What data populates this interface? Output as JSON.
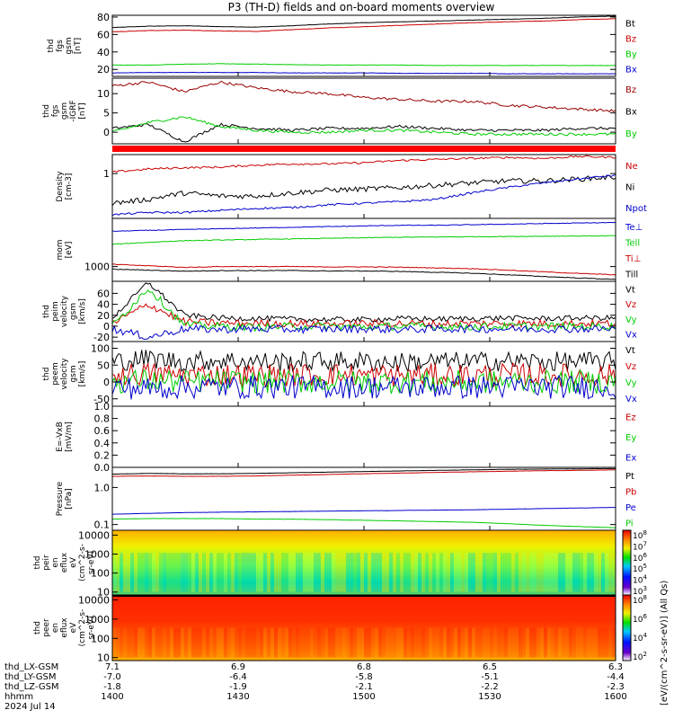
{
  "title": "P3 (TH-D) fields and on-board moments overview",
  "footer": {
    "row_labels": [
      "thd_LX-GSM",
      "thd_LY-GSM",
      "thd_LZ-GSM",
      "hhmm",
      "2024 Jul 14"
    ],
    "lx": [
      "7.1",
      "6.9",
      "6.8",
      "6.5",
      "6.3"
    ],
    "ly": [
      "-7.0",
      "-6.4",
      "-5.8",
      "-5.1",
      "-4.4"
    ],
    "lz": [
      "-1.8",
      "-1.9",
      "-2.1",
      "-2.2",
      "-2.3"
    ],
    "hhmm": [
      "1400",
      "1430",
      "1500",
      "1530",
      "1600"
    ],
    "date": "2024 Jul 14"
  },
  "colorbar_label": "[eV/(cm^2-s-sr-eV)] (All Qs)",
  "colors": {
    "black": "#000000",
    "red": "#cc0000",
    "green": "#00cc00",
    "blue": "#0000cc",
    "darkred": "#990000"
  },
  "chart_data": [
    {
      "id": "fgs_gsm",
      "type": "line",
      "ylabel": [
        "thd",
        "fgs",
        "gsm",
        "[nT]"
      ],
      "yticks": [
        "80",
        "60",
        "40",
        "20"
      ],
      "ylim": [
        12,
        82
      ],
      "series": [
        {
          "name": "Bt",
          "color": "#000000",
          "values": [
            68,
            69.5,
            70,
            69,
            68.5,
            70,
            72,
            73.5,
            74.5,
            75.5,
            76.5,
            77.5,
            78.5,
            80,
            81
          ]
        },
        {
          "name": "Bz",
          "color": "#cc0000",
          "values": [
            63,
            64.5,
            65,
            64,
            63.5,
            65.5,
            67.5,
            69,
            70.5,
            72,
            73.5,
            74.5,
            75.5,
            77,
            78
          ]
        },
        {
          "name": "By",
          "color": "#00cc00",
          "values": [
            25,
            25,
            26,
            26.5,
            26,
            25.5,
            25,
            25,
            25,
            24.5,
            24.5,
            24.5,
            24.5,
            24.5,
            24.5
          ]
        },
        {
          "name": "Bx",
          "color": "#0000cc",
          "values": [
            16,
            16.5,
            16.5,
            16.5,
            16.5,
            16,
            16,
            16,
            15.5,
            15.5,
            15.5,
            15,
            15,
            15,
            15
          ]
        }
      ]
    },
    {
      "id": "fgs_gsm_dip",
      "type": "line",
      "ylabel": [
        "thd",
        "fgs",
        "gsm",
        "-IGRF",
        "[nT]"
      ],
      "yticks": [
        "10",
        "5",
        "0"
      ],
      "ylim": [
        -3,
        14
      ],
      "series": [
        {
          "name": "Bz",
          "color": "#990000",
          "values": [
            12,
            13,
            10.5,
            13,
            11.5,
            10.5,
            10,
            9,
            8.5,
            8,
            8,
            7,
            6.5,
            6,
            5.5
          ]
        },
        {
          "name": "Bx",
          "color": "#000000",
          "values": [
            1,
            2,
            -2.5,
            2,
            1,
            0.5,
            1,
            1,
            1.5,
            1,
            0.5,
            0.5,
            0.5,
            1,
            1
          ]
        },
        {
          "name": "By",
          "color": "#00cc00",
          "values": [
            0,
            2.5,
            4,
            1.5,
            0.5,
            0,
            0,
            0.5,
            0.5,
            0,
            -0.5,
            -0.5,
            -0.5,
            -0.5,
            -0.5
          ]
        }
      ]
    },
    {
      "id": "density",
      "type": "line",
      "ylog": true,
      "ylabel": [
        "Density",
        "[cm-3]"
      ],
      "yticks": [
        "1"
      ],
      "ylim": [
        0.25,
        1.8
      ],
      "series": [
        {
          "name": "Ne",
          "color": "#cc0000",
          "values": [
            1.05,
            1.15,
            1.2,
            1.22,
            1.3,
            1.35,
            1.35,
            1.4,
            1.5,
            1.55,
            1.6,
            1.65,
            1.6,
            1.7,
            1.65
          ]
        },
        {
          "name": "Ni",
          "color": "#000000",
          "values": [
            0.4,
            0.45,
            0.55,
            0.5,
            0.5,
            0.55,
            0.6,
            0.62,
            0.65,
            0.7,
            0.75,
            0.8,
            0.8,
            0.85,
            0.9
          ]
        },
        {
          "name": "Npot",
          "color": "#0000cc",
          "values": [
            0.28,
            0.3,
            0.3,
            0.32,
            0.34,
            0.35,
            0.38,
            0.4,
            0.42,
            0.45,
            0.55,
            0.65,
            0.75,
            0.85,
            0.95
          ]
        }
      ]
    },
    {
      "id": "temperature",
      "type": "line",
      "ylog": true,
      "ylabel": [
        "mom",
        "[eV]"
      ],
      "yticks": [
        "1000"
      ],
      "ylim": [
        400,
        20000
      ],
      "series": [
        {
          "name": "Te⊥",
          "color": "#0000cc",
          "values": [
            9000,
            9500,
            10000,
            10500,
            11000,
            11500,
            12000,
            12500,
            13000,
            13000,
            13500,
            14000,
            14500,
            15000,
            15500
          ]
        },
        {
          "name": "Tell",
          "color": "#00cc00",
          "values": [
            4000,
            4500,
            5000,
            5200,
            5400,
            5600,
            5800,
            6000,
            6200,
            6300,
            6400,
            6500,
            6600,
            6700,
            6800
          ]
        },
        {
          "name": "Ti⊥",
          "color": "#cc0000",
          "values": [
            1150,
            1050,
            950,
            1000,
            1000,
            1000,
            980,
            980,
            960,
            920,
            880,
            800,
            720,
            650,
            600
          ]
        },
        {
          "name": "Till",
          "color": "#000000",
          "values": [
            850,
            800,
            750,
            780,
            780,
            780,
            760,
            760,
            740,
            700,
            660,
            600,
            540,
            490,
            450
          ]
        }
      ]
    },
    {
      "id": "peim_velocity",
      "type": "line",
      "ylabel": [
        "thd",
        "peim",
        "velocity",
        "gsm",
        "[km/s]"
      ],
      "yticks": [
        "60",
        "40",
        "20",
        "0",
        "-20"
      ],
      "ylim": [
        -28,
        82
      ],
      "series": [
        {
          "name": "Vt",
          "color": "#000000",
          "values": [
            15,
            80,
            20,
            15,
            14,
            13,
            12,
            12,
            14,
            13,
            14,
            15,
            14,
            15,
            15
          ]
        },
        {
          "name": "Vz",
          "color": "#cc0000",
          "values": [
            5,
            40,
            8,
            6,
            5,
            5,
            4,
            5,
            5,
            4,
            5,
            5,
            5,
            5,
            5
          ]
        },
        {
          "name": "Vy",
          "color": "#00cc00",
          "values": [
            0,
            70,
            2,
            0,
            -2,
            0,
            0,
            -1,
            0,
            0,
            -1,
            0,
            0,
            0,
            0
          ]
        },
        {
          "name": "Vx",
          "color": "#0000cc",
          "values": [
            -5,
            -20,
            -5,
            -6,
            -5,
            -6,
            -5,
            -5,
            -6,
            -5,
            -5,
            -5,
            -5,
            -5,
            -5
          ]
        }
      ]
    },
    {
      "id": "peem_velocity",
      "type": "line",
      "ylabel": [
        "thd",
        "peem",
        "velocity",
        "gsm",
        "[km/s]"
      ],
      "yticks": [
        "100",
        "50",
        "0",
        "-50"
      ],
      "ylim": [
        -72,
        120
      ],
      "series": [
        {
          "name": "Vt",
          "color": "#000000",
          "values": [
            60,
            70,
            60,
            65,
            60,
            60,
            62,
            60,
            58,
            60,
            60,
            62,
            60,
            60,
            60
          ]
        },
        {
          "name": "Vz",
          "color": "#cc0000",
          "values": [
            20,
            25,
            20,
            22,
            20,
            20,
            22,
            20,
            20,
            20,
            20,
            22,
            20,
            20,
            20
          ]
        },
        {
          "name": "Vy",
          "color": "#00cc00",
          "values": [
            0,
            5,
            0,
            2,
            0,
            0,
            0,
            0,
            0,
            0,
            0,
            0,
            0,
            0,
            0
          ]
        },
        {
          "name": "Vx",
          "color": "#0000cc",
          "values": [
            -15,
            -20,
            -15,
            -15,
            -15,
            -15,
            -15,
            -15,
            -15,
            -15,
            -15,
            -15,
            -15,
            -15,
            -15
          ]
        }
      ]
    },
    {
      "id": "efield",
      "type": "line",
      "ylabel": [
        "E=-VxB",
        "[mV/m]"
      ],
      "yticks": [
        "1.0",
        "0.8",
        "0.6",
        "0.4",
        "0.2",
        "0.0"
      ],
      "ylim": [
        0,
        1
      ],
      "series": [
        {
          "name": "Ez",
          "color": "#cc0000",
          "values": []
        },
        {
          "name": "Ey",
          "color": "#00cc00",
          "values": []
        },
        {
          "name": "Ex",
          "color": "#0000cc",
          "values": []
        }
      ]
    },
    {
      "id": "pressure",
      "type": "line",
      "ylog": true,
      "ylabel": [
        "Pressure",
        "[nPa]"
      ],
      "yticks": [
        "1.0",
        "0.1"
      ],
      "ylim": [
        0.07,
        3.5
      ],
      "series": [
        {
          "name": "Pt",
          "color": "#000000",
          "values": [
            2.3,
            2.4,
            2.35,
            2.35,
            2.4,
            2.5,
            2.6,
            2.7,
            2.8,
            2.9,
            3.0,
            3.1,
            3.15,
            3.2,
            3.25
          ]
        },
        {
          "name": "Pb",
          "color": "#cc0000",
          "values": [
            2.0,
            2.05,
            2.0,
            2.0,
            2.05,
            2.15,
            2.25,
            2.35,
            2.45,
            2.55,
            2.65,
            2.75,
            2.85,
            2.9,
            3.0
          ]
        },
        {
          "name": "Pe",
          "color": "#0000cc",
          "values": [
            0.19,
            0.2,
            0.21,
            0.215,
            0.22,
            0.225,
            0.23,
            0.235,
            0.24,
            0.245,
            0.25,
            0.26,
            0.27,
            0.28,
            0.29
          ]
        },
        {
          "name": "Pi",
          "color": "#00cc00",
          "values": [
            0.14,
            0.145,
            0.145,
            0.145,
            0.14,
            0.14,
            0.135,
            0.13,
            0.125,
            0.12,
            0.115,
            0.105,
            0.095,
            0.088,
            0.082
          ]
        }
      ]
    },
    {
      "id": "peir_eflux",
      "type": "heatmap",
      "ylabel": [
        "thd",
        "peir",
        "en",
        "eflux",
        "eV",
        "(cm^2-s-",
        "sr-eV)"
      ],
      "yticks": [
        "10000",
        "1000",
        "100",
        "10"
      ],
      "colorbar_ticks": [
        "10^8",
        "10^7",
        "10^6",
        "10^5",
        "10^4",
        "10^3"
      ]
    },
    {
      "id": "peer_eflux",
      "type": "heatmap",
      "ylabel": [
        "thd",
        "peer",
        "en",
        "eflux",
        "eV",
        "(cm^2-s-",
        "sr-eV)"
      ],
      "yticks": [
        "10000",
        "1000",
        "100",
        "10"
      ],
      "colorbar_ticks": [
        "10^8",
        "10^6",
        "10^4",
        "10^2"
      ]
    }
  ]
}
